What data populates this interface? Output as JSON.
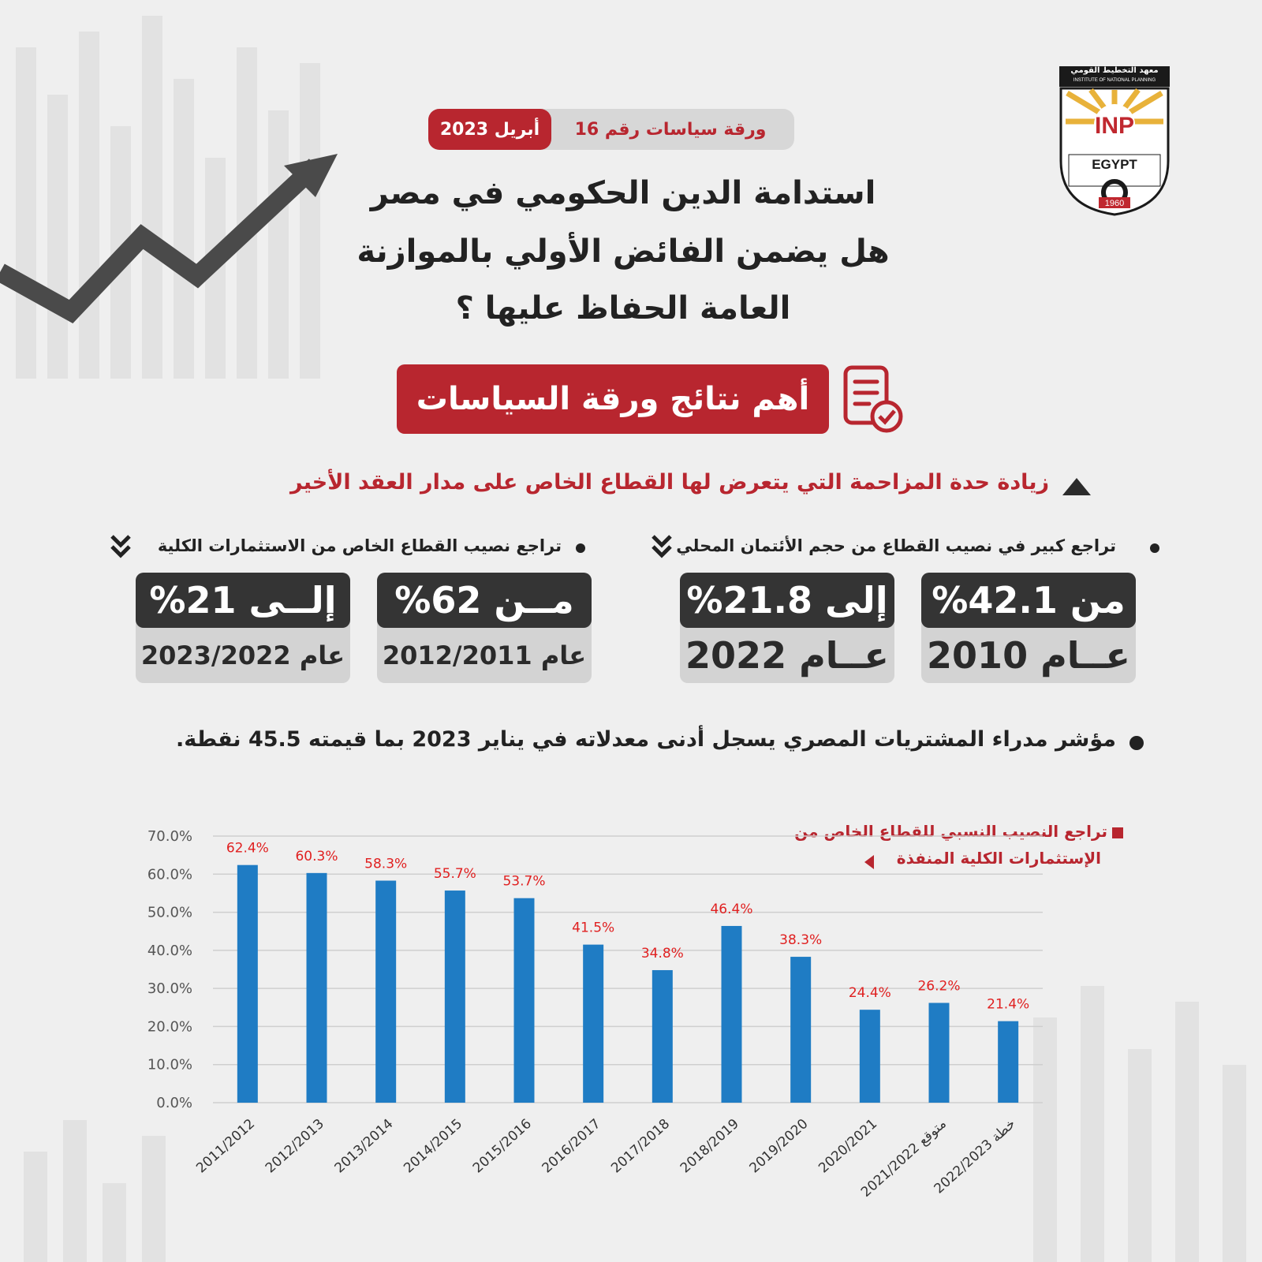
{
  "logo": {
    "arabic_name": "معهد التخطيط القومي",
    "english_name": "INSTITUTE OF NATIONAL PLANNING",
    "abbrev": "INP",
    "country": "EGYPT",
    "year": "1960"
  },
  "header": {
    "policy_paper_label": "ورقة سياسات رقم 16",
    "date": "أبريل 2023"
  },
  "title": {
    "line1": "استدامة الدين الحكومي في مصر",
    "line2": "هل يضمن الفائض الأولي بالموازنة",
    "line3": "العامة الحفاظ عليها ؟"
  },
  "findings_label": "أهم نتائج ورقة السياسات",
  "subheading": "زيادة حدة المزاحمة التي يتعرض لها القطاع الخاص على مدار العقد الأخير",
  "credit_section": {
    "text": "تراجع كبير في نصيب القطاع من حجم الأئتمان المحلي",
    "from_value": "من 42.1%",
    "from_year": "عــام 2010",
    "to_value": "إلى 21.8%",
    "to_year": "عــام 2022"
  },
  "investment_section": {
    "text": "تراجع نصيب القطاع الخاص من الاستثمارات الكلية",
    "from_value": "مــن 62%",
    "from_year": "عام 2012/2011",
    "to_value": "إلــى 21%",
    "to_year": "عام 2023/2022"
  },
  "pmi_note": "مؤشر مدراء المشتريات المصري يسجل أدنى معدلاته في يناير 2023 بما قيمته 45.5 نقطة.",
  "chart_legend": {
    "line1": "تراجع النصيب النسبي للقطاع الخاص من",
    "line2": "الإستثمارات الكلية المنفذة"
  },
  "colors": {
    "accent_red": "#b8262f",
    "bar_blue": "#1f7cc4",
    "label_red": "#e02020",
    "dark_card": "#343434"
  },
  "chart_data": {
    "type": "bar",
    "categories": [
      "2011/2012",
      "2012/2013",
      "2013/2014",
      "2014/2015",
      "2015/2016",
      "2016/2017",
      "2017/2018",
      "2018/2019",
      "2019/2020",
      "2020/2021",
      "2021/2022 متوقع",
      "2022/2023 خطة"
    ],
    "values": [
      62.4,
      60.3,
      58.3,
      55.7,
      53.7,
      41.5,
      34.8,
      46.4,
      38.3,
      24.4,
      26.2,
      21.4
    ],
    "data_labels": [
      "62.4%",
      "60.3%",
      "58.3%",
      "55.7%",
      "53.7%",
      "41.5%",
      "34.8%",
      "46.4%",
      "38.3%",
      "24.4%",
      "26.2%",
      "21.4%"
    ],
    "yticks": [
      "0.0%",
      "10.0%",
      "20.0%",
      "30.0%",
      "40.0%",
      "50.0%",
      "60.0%",
      "70.0%"
    ],
    "ylim": [
      0,
      70
    ],
    "grid": true
  }
}
